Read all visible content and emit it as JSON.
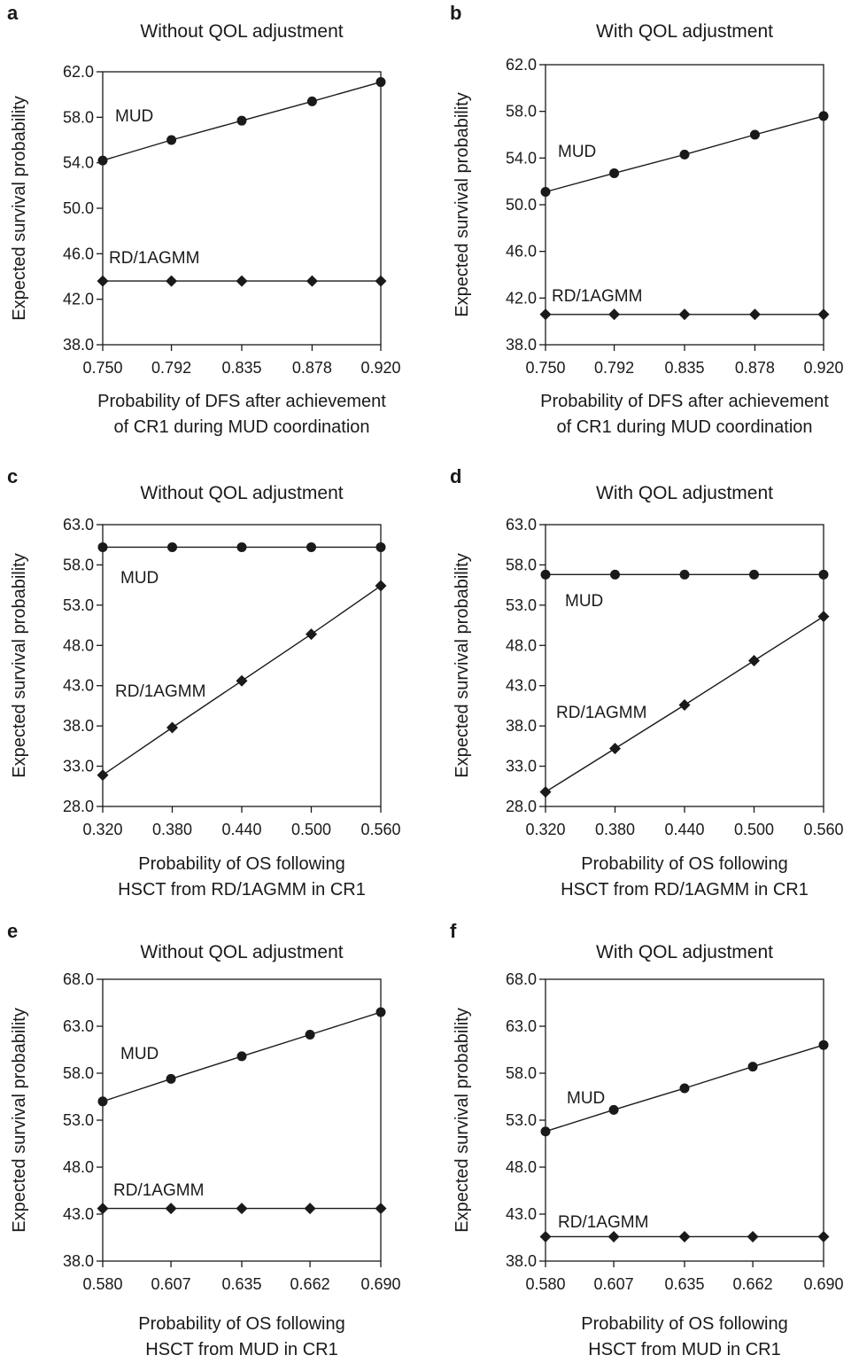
{
  "chart_data": [
    {
      "panel": "a",
      "type": "line",
      "title": "Without QOL adjustment",
      "ylabel": "Expected survival probability",
      "xlabel_lines": [
        "Probability of DFS after achievement",
        "of CR1 during MUD coordination"
      ],
      "x": [
        0.75,
        0.792,
        0.835,
        0.878,
        0.92
      ],
      "x_tick_labels": [
        "0.750",
        "0.792",
        "0.835",
        "0.878",
        "0.920"
      ],
      "ylim": [
        38.0,
        62.0
      ],
      "y_tick_labels": [
        "38.0",
        "42.0",
        "46.0",
        "50.0",
        "54.0",
        "58.0",
        "62.0"
      ],
      "series": [
        {
          "name": "MUD",
          "marker": "circle",
          "values": [
            54.2,
            56.0,
            57.7,
            59.4,
            61.1
          ]
        },
        {
          "name": "RD/1AGMM",
          "marker": "diamond",
          "values": [
            43.6,
            43.6,
            43.6,
            43.6,
            43.6
          ]
        }
      ]
    },
    {
      "panel": "b",
      "type": "line",
      "title": "With QOL adjustment",
      "ylabel": "Expected survival probability",
      "xlabel_lines": [
        "Probability of DFS after achievement",
        "of CR1 during MUD coordination"
      ],
      "x": [
        0.75,
        0.792,
        0.835,
        0.878,
        0.92
      ],
      "x_tick_labels": [
        "0.750",
        "0.792",
        "0.835",
        "0.878",
        "0.920"
      ],
      "ylim": [
        38.0,
        62.0
      ],
      "y_tick_labels": [
        "38.0",
        "42.0",
        "46.0",
        "50.0",
        "54.0",
        "58.0",
        "62.0"
      ],
      "series": [
        {
          "name": "MUD",
          "marker": "circle",
          "values": [
            51.1,
            52.7,
            54.3,
            56.0,
            57.6
          ]
        },
        {
          "name": "RD/1AGMM",
          "marker": "diamond",
          "values": [
            40.6,
            40.6,
            40.6,
            40.6,
            40.6
          ]
        }
      ]
    },
    {
      "panel": "c",
      "type": "line",
      "title": "Without QOL adjustment",
      "ylabel": "Expected survival probability",
      "xlabel_lines": [
        "Probability of OS following",
        "HSCT from RD/1AGMM in CR1"
      ],
      "x": [
        0.32,
        0.38,
        0.44,
        0.5,
        0.56
      ],
      "x_tick_labels": [
        "0.320",
        "0.380",
        "0.440",
        "0.500",
        "0.560"
      ],
      "ylim": [
        28.0,
        63.0
      ],
      "y_tick_labels": [
        "28.0",
        "33.0",
        "38.0",
        "43.0",
        "48.0",
        "53.0",
        "58.0",
        "63.0"
      ],
      "series": [
        {
          "name": "MUD",
          "marker": "circle",
          "values": [
            60.2,
            60.2,
            60.2,
            60.2,
            60.2
          ]
        },
        {
          "name": "RD/1AGMM",
          "marker": "diamond",
          "values": [
            31.9,
            37.8,
            43.6,
            49.4,
            55.4
          ]
        }
      ]
    },
    {
      "panel": "d",
      "type": "line",
      "title": "With QOL adjustment",
      "ylabel": "Expected survival probability",
      "xlabel_lines": [
        "Probability of OS following",
        "HSCT from RD/1AGMM in CR1"
      ],
      "x": [
        0.32,
        0.38,
        0.44,
        0.5,
        0.56
      ],
      "x_tick_labels": [
        "0.320",
        "0.380",
        "0.440",
        "0.500",
        "0.560"
      ],
      "ylim": [
        28.0,
        63.0
      ],
      "y_tick_labels": [
        "28.0",
        "33.0",
        "38.0",
        "43.0",
        "48.0",
        "53.0",
        "58.0",
        "63.0"
      ],
      "series": [
        {
          "name": "MUD",
          "marker": "circle",
          "values": [
            56.8,
            56.8,
            56.8,
            56.8,
            56.8
          ]
        },
        {
          "name": "RD/1AGMM",
          "marker": "diamond",
          "values": [
            29.8,
            35.2,
            40.6,
            46.1,
            51.6
          ]
        }
      ]
    },
    {
      "panel": "e",
      "type": "line",
      "title": "Without QOL adjustment",
      "ylabel": "Expected survival probability",
      "xlabel_lines": [
        "Probability of OS following",
        "HSCT from MUD in CR1"
      ],
      "x": [
        0.58,
        0.607,
        0.635,
        0.662,
        0.69
      ],
      "x_tick_labels": [
        "0.580",
        "0.607",
        "0.635",
        "0.662",
        "0.690"
      ],
      "ylim": [
        38.0,
        68.0
      ],
      "y_tick_labels": [
        "38.0",
        "43.0",
        "48.0",
        "53.0",
        "58.0",
        "63.0",
        "68.0"
      ],
      "series": [
        {
          "name": "MUD",
          "marker": "circle",
          "values": [
            55.0,
            57.4,
            59.8,
            62.1,
            64.5
          ]
        },
        {
          "name": "RD/1AGMM",
          "marker": "diamond",
          "values": [
            43.6,
            43.6,
            43.6,
            43.6,
            43.6
          ]
        }
      ]
    },
    {
      "panel": "f",
      "type": "line",
      "title": "With QOL adjustment",
      "ylabel": "Expected survival probability",
      "xlabel_lines": [
        "Probability of OS following",
        "HSCT from MUD in CR1"
      ],
      "x": [
        0.58,
        0.607,
        0.635,
        0.662,
        0.69
      ],
      "x_tick_labels": [
        "0.580",
        "0.607",
        "0.635",
        "0.662",
        "0.690"
      ],
      "ylim": [
        38.0,
        68.0
      ],
      "y_tick_labels": [
        "38.0",
        "43.0",
        "48.0",
        "53.0",
        "58.0",
        "63.0",
        "68.0"
      ],
      "series": [
        {
          "name": "MUD",
          "marker": "circle",
          "values": [
            51.8,
            54.1,
            56.4,
            58.7,
            61.0
          ]
        },
        {
          "name": "RD/1AGMM",
          "marker": "diamond",
          "values": [
            40.6,
            40.6,
            40.6,
            40.6,
            40.6
          ]
        }
      ]
    }
  ]
}
